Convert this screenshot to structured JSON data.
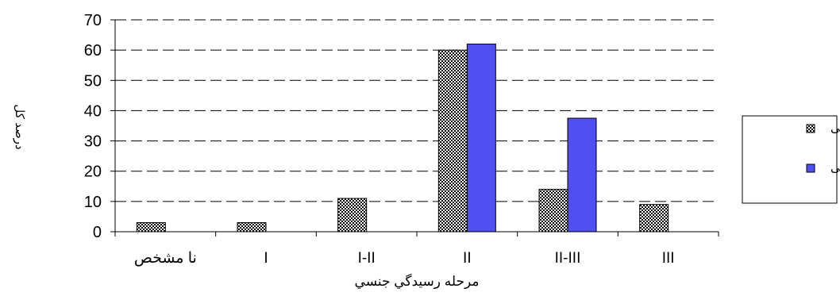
{
  "chart_data": {
    "type": "bar",
    "title": "",
    "xlabel": "مرحله رسيدگي جنسي",
    "ylabel": "درصد کل",
    "ylim": [
      0,
      70
    ],
    "yticks": [
      0,
      10,
      20,
      30,
      40,
      50,
      60,
      70
    ],
    "categories": [
      "نا مشخص",
      "I",
      "I-II",
      "II",
      "II-III",
      "III"
    ],
    "grid": "horizontal-dashed",
    "legend_position": "right",
    "series": [
      {
        "name": "چهار سالگی",
        "values": [
          3,
          3,
          11,
          60,
          14,
          9
        ],
        "pattern": "checkered",
        "color": "#000000"
      },
      {
        "name": "پنج سالگی",
        "values": [
          0,
          0,
          0,
          62,
          37.5,
          0
        ],
        "pattern": "solid",
        "color": "#5050f0"
      }
    ]
  }
}
